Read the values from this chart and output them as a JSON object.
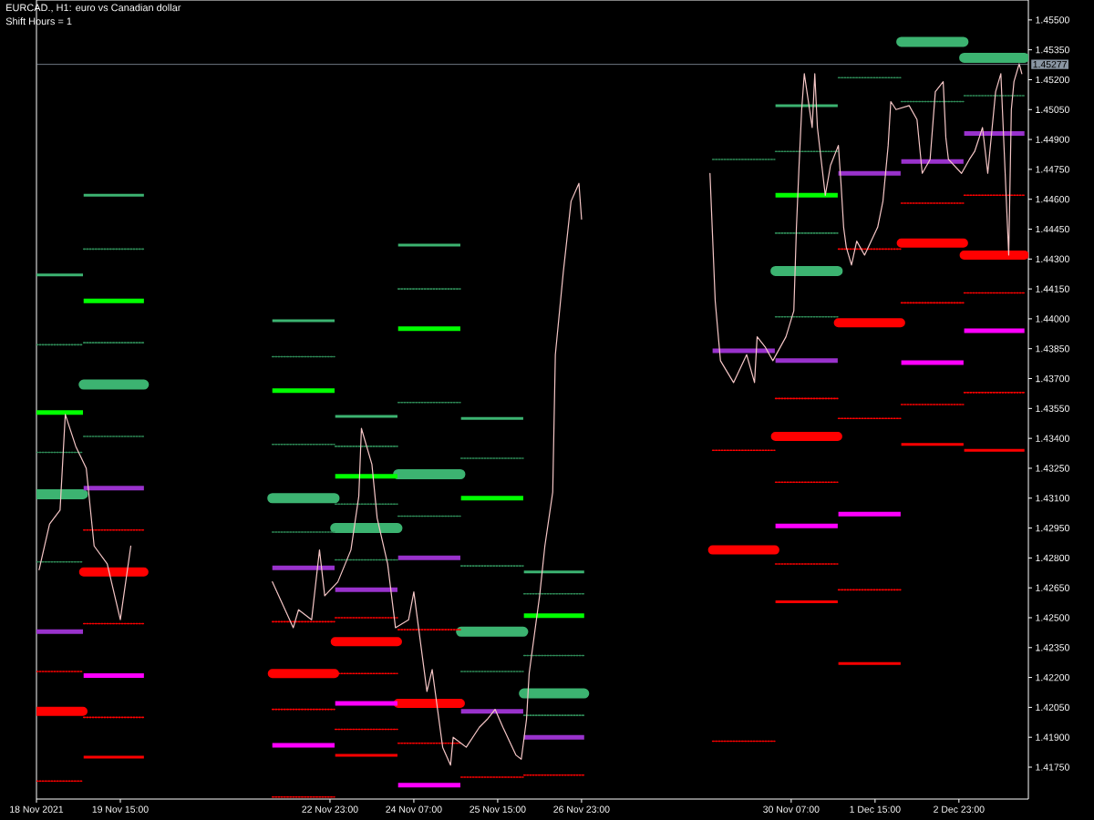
{
  "chart_data": {
    "type": "line",
    "title": "EURCAD., H1: euro vs Canadian dollar",
    "subtitle": "Shift Hours = 1",
    "xlim": [
      "2021-11-18T07:00",
      "2021-12-04T01:30"
    ],
    "ylim": [
      1.4159,
      1.456
    ],
    "xticks": [
      {
        "value": "2021-11-18T07:00",
        "label": "18 Nov 2021"
      },
      {
        "value": "2021-11-19T15:00",
        "label": "19 Nov 15:00"
      },
      {
        "value": "2021-11-22T23:00",
        "label": "22 Nov 23:00"
      },
      {
        "value": "2021-11-24T07:00",
        "label": "24 Nov 07:00"
      },
      {
        "value": "2021-11-25T15:00",
        "label": "25 Nov 15:00"
      },
      {
        "value": "2021-11-26T23:00",
        "label": "26 Nov 23:00"
      },
      {
        "value": "2021-11-30T07:00",
        "label": "30 Nov 07:00"
      },
      {
        "value": "2021-12-01T15:00",
        "label": "1 Dec 15:00"
      },
      {
        "value": "2021-12-02T23:00",
        "label": "2 Dec 23:00"
      }
    ],
    "yticks": [
      {
        "value": 1.4175,
        "label": "1.41750"
      },
      {
        "value": 1.419,
        "label": "1.41900"
      },
      {
        "value": 1.4205,
        "label": "1.42050"
      },
      {
        "value": 1.422,
        "label": "1.42200"
      },
      {
        "value": 1.4235,
        "label": "1.42350"
      },
      {
        "value": 1.425,
        "label": "1.42500"
      },
      {
        "value": 1.4265,
        "label": "1.42650"
      },
      {
        "value": 1.428,
        "label": "1.42800"
      },
      {
        "value": 1.4295,
        "label": "1.42950"
      },
      {
        "value": 1.431,
        "label": "1.43100"
      },
      {
        "value": 1.4325,
        "label": "1.43250"
      },
      {
        "value": 1.434,
        "label": "1.43400"
      },
      {
        "value": 1.4355,
        "label": "1.43550"
      },
      {
        "value": 1.437,
        "label": "1.43700"
      },
      {
        "value": 1.4385,
        "label": "1.43850"
      },
      {
        "value": 1.44,
        "label": "1.44000"
      },
      {
        "value": 1.4415,
        "label": "1.44150"
      },
      {
        "value": 1.443,
        "label": "1.44300"
      },
      {
        "value": 1.4445,
        "label": "1.44450"
      },
      {
        "value": 1.446,
        "label": "1.44600"
      },
      {
        "value": 1.4475,
        "label": "1.44750"
      },
      {
        "value": 1.449,
        "label": "1.44900"
      },
      {
        "value": 1.4505,
        "label": "1.45050"
      },
      {
        "value": 1.452,
        "label": "1.45200"
      },
      {
        "value": 1.4535,
        "label": "1.45350"
      },
      {
        "value": 1.455,
        "label": "1.45500"
      }
    ],
    "ref_lines": [
      {
        "axis": "y",
        "value": 1.45277,
        "label": "1.45277",
        "color": "#8a96a3"
      }
    ],
    "series": [
      {
        "color": "#f5c6c6",
        "x": [
          "2021-11-18T08:00",
          "2021-11-18T12:00",
          "2021-11-18T16:00",
          "2021-11-18T18:00",
          "2021-11-18T22:00",
          "2021-11-19T02:00",
          "2021-11-19T05:00",
          "2021-11-19T10:00",
          "2021-11-19T15:00",
          "2021-11-19T19:00",
          null,
          "2021-11-22T01:00",
          "2021-11-22T09:00",
          "2021-11-22T11:00",
          "2021-11-22T16:00",
          "2021-11-22T19:00",
          "2021-11-22T21:00",
          "2021-11-23T02:00",
          "2021-11-23T07:00",
          "2021-11-23T10:00",
          "2021-11-23T11:00",
          "2021-11-23T15:00",
          "2021-11-23T17:00",
          "2021-11-23T21:00",
          "2021-11-24T00:00",
          "2021-11-24T05:00",
          "2021-11-24T07:00",
          "2021-11-24T12:00",
          "2021-11-24T14:00",
          "2021-11-24T18:00",
          "2021-11-24T21:00",
          "2021-11-24T22:00",
          "2021-11-25T03:00",
          "2021-11-25T08:00",
          "2021-11-25T11:00",
          "2021-11-25T14:00",
          "2021-11-25T17:00",
          "2021-11-25T22:00",
          "2021-11-26T00:00",
          "2021-11-26T02:00",
          "2021-11-26T03:00",
          "2021-11-26T07:00",
          "2021-11-26T09:00",
          "2021-11-26T12:00",
          "2021-11-26T13:00",
          "2021-11-26T16:00",
          "2021-11-26T19:00",
          "2021-11-26T22:00",
          "2021-11-26T23:00",
          null,
          "2021-11-29T00:00",
          "2021-11-29T02:00",
          "2021-11-29T04:00",
          "2021-11-29T09:00",
          "2021-11-29T14:00",
          "2021-11-29T17:00",
          "2021-11-29T18:00",
          "2021-11-29T21:00",
          "2021-11-30T00:00",
          "2021-11-30T05:00",
          "2021-11-30T08:00",
          "2021-11-30T09:00",
          "2021-11-30T10:00",
          "2021-11-30T11:00",
          "2021-11-30T12:00",
          "2021-11-30T15:00",
          "2021-11-30T16:00",
          "2021-11-30T17:00",
          "2021-11-30T20:00",
          "2021-11-30T22:00",
          "2021-12-01T01:00",
          "2021-12-01T02:00",
          "2021-12-01T03:00",
          "2021-12-01T04:00",
          "2021-12-01T06:00",
          "2021-12-01T08:00",
          "2021-12-01T11:00",
          "2021-12-01T16:00",
          "2021-12-01T18:00",
          "2021-12-01T20:00",
          "2021-12-01T21:00",
          "2021-12-01T23:00",
          "2021-12-02T04:00",
          "2021-12-02T07:00",
          "2021-12-02T09:00",
          "2021-12-02T12:00",
          "2021-12-02T14:00",
          "2021-12-02T17:00",
          "2021-12-02T18:00",
          "2021-12-02T19:00",
          "2021-12-03T00:00",
          "2021-12-03T03:00",
          "2021-12-03T05:00",
          "2021-12-03T08:00",
          "2021-12-03T10:00",
          "2021-12-03T13:00",
          "2021-12-03T15:00",
          "2021-12-03T18:00",
          "2021-12-03T19:00",
          "2021-12-03T20:00",
          "2021-12-03T22:00",
          "2021-12-03T23:00"
        ],
        "values": [
          1.4274,
          1.4297,
          1.4304,
          1.4352,
          1.4336,
          1.4325,
          1.4286,
          1.4277,
          1.4249,
          1.4286,
          null,
          1.4268,
          1.4245,
          1.4254,
          1.4249,
          1.4284,
          1.4261,
          1.4268,
          1.4284,
          1.4311,
          1.4345,
          1.4327,
          1.43,
          1.4277,
          1.4245,
          1.4249,
          1.4263,
          1.4213,
          1.4224,
          1.4185,
          1.4176,
          1.419,
          1.4185,
          1.4195,
          1.4199,
          1.4204,
          1.4195,
          1.4181,
          1.4179,
          1.4199,
          1.4222,
          1.4261,
          1.4286,
          1.4313,
          1.4382,
          1.4423,
          1.4459,
          1.4468,
          1.445,
          null,
          1.4473,
          1.4409,
          1.4379,
          1.4368,
          1.4382,
          1.4368,
          1.4391,
          1.4386,
          1.4379,
          1.4391,
          1.4404,
          1.4446,
          1.4477,
          1.4505,
          1.4523,
          1.4496,
          1.4523,
          1.4496,
          1.4462,
          1.4477,
          1.4487,
          1.4468,
          1.4446,
          1.4436,
          1.4427,
          1.4439,
          1.4432,
          1.4446,
          1.4459,
          1.4487,
          1.4509,
          1.4505,
          1.4507,
          1.45,
          1.4473,
          1.448,
          1.4514,
          1.4519,
          1.4491,
          1.448,
          1.4473,
          1.448,
          1.4484,
          1.4496,
          1.4473,
          1.4514,
          1.4523,
          1.4432,
          1.4505,
          1.4519,
          1.4528,
          1.4523
        ]
      },
      {
        "color": "#2e8b57",
        "line_style": "dotted",
        "x": [
          "2021-11-18T07:00",
          "2021-11-19T00:45",
          null,
          "2021-11-19T01:00",
          "2021-11-20T00:00",
          null,
          "2021-11-22T01:00",
          "2021-11-23T00:45",
          null,
          "2021-11-23T01:00",
          "2021-11-24T00:45",
          null,
          "2021-11-24T01:00",
          "2021-11-25T00:45",
          null,
          "2021-11-25T01:00",
          "2021-11-26T00:45",
          null,
          "2021-11-26T01:00",
          "2021-11-27T00:00",
          null,
          "2021-11-29T01:00",
          "2021-11-30T00:45",
          null,
          "2021-11-30T01:00",
          "2021-12-01T00:45",
          null,
          "2021-12-01T01:00",
          "2021-12-02T00:45",
          null,
          "2021-12-02T01:00",
          "2021-12-03T00:45",
          null,
          "2021-12-03T01:00",
          "2021-12-04T00:00"
        ],
        "values": [
          1.4387,
          1.4387,
          null,
          1.4435,
          1.4435,
          null,
          1.4381,
          1.4381,
          null,
          1.4336,
          1.4336,
          null,
          1.4415,
          1.4415,
          null,
          1.433,
          1.433,
          null,
          1.4262,
          1.4262,
          null,
          1.448,
          1.448,
          null,
          1.4484,
          1.4484,
          null,
          1.4521,
          1.4521,
          null,
          1.4509,
          1.4509,
          null,
          1.4512,
          1.4512
        ]
      },
      {
        "color": "#2e8b57",
        "line_style": "dotted",
        "x": [
          "2021-11-18T07:00",
          "2021-11-19T00:45",
          null,
          "2021-11-19T01:00",
          "2021-11-20T00:00",
          null,
          "2021-11-22T01:00",
          "2021-11-23T00:45",
          null,
          "2021-11-23T01:00",
          "2021-11-24T00:45",
          null,
          "2021-11-24T01:00",
          "2021-11-25T00:45",
          null,
          "2021-11-25T01:00",
          "2021-11-26T00:45",
          null,
          "2021-11-26T01:00",
          "2021-11-27T00:00",
          null,
          "2021-11-30T01:00",
          "2021-12-01T00:45"
        ],
        "values": [
          1.4333,
          1.4333,
          null,
          1.4388,
          1.4388,
          null,
          1.4337,
          1.4337,
          null,
          1.4307,
          1.4307,
          null,
          1.4358,
          1.4358,
          null,
          1.4276,
          1.4276,
          null,
          1.4231,
          1.4231,
          null,
          1.4443,
          1.4443
        ]
      },
      {
        "color": "#2e8b57",
        "line_style": "dotted",
        "x": [
          "2021-11-18T07:00",
          "2021-11-19T00:45",
          null,
          "2021-11-19T01:00",
          "2021-11-20T00:00",
          null,
          "2021-11-22T01:00",
          "2021-11-23T00:45",
          null,
          "2021-11-23T01:00",
          "2021-11-24T00:45",
          null,
          "2021-11-24T01:00",
          "2021-11-25T00:45",
          null,
          "2021-11-25T01:00",
          "2021-11-26T00:45",
          null,
          "2021-11-26T01:00",
          "2021-11-27T00:00",
          null,
          "2021-11-30T01:00",
          "2021-12-01T00:45"
        ],
        "values": [
          1.4278,
          1.4278,
          null,
          1.4341,
          1.4341,
          null,
          1.4293,
          1.4293,
          null,
          1.4279,
          1.4279,
          null,
          1.4301,
          1.4301,
          null,
          1.4223,
          1.4223,
          null,
          1.4201,
          1.4201,
          null,
          1.4401,
          1.4401
        ]
      },
      {
        "color": "#ff0000",
        "line_style": "dotted",
        "x": [
          "2021-11-18T07:00",
          "2021-11-19T00:45",
          null,
          "2021-11-19T01:00",
          "2021-11-20T00:00",
          null,
          "2021-11-22T01:00",
          "2021-11-23T00:45",
          null,
          "2021-11-23T01:00",
          "2021-11-24T00:45",
          null,
          "2021-11-24T01:00",
          "2021-11-25T00:45",
          null,
          "2021-11-25T01:00",
          "2021-11-26T00:45",
          null,
          "2021-11-26T01:00",
          "2021-11-27T00:00",
          null,
          "2021-11-29T01:00",
          "2021-11-30T00:45",
          null,
          "2021-11-30T01:00",
          "2021-12-01T00:45",
          null,
          "2021-12-01T01:00",
          "2021-12-02T00:45",
          null,
          "2021-12-02T01:00",
          "2021-12-03T00:45",
          null,
          "2021-12-03T01:00",
          "2021-12-04T00:00"
        ],
        "values": [
          1.4223,
          1.4223,
          null,
          1.4294,
          1.4294,
          null,
          1.4248,
          1.4248,
          null,
          1.425,
          1.425,
          null,
          1.4244,
          1.4244,
          null,
          1.417,
          1.417,
          null,
          1.4171,
          1.4171,
          null,
          1.4334,
          1.4334,
          null,
          1.436,
          1.436,
          null,
          1.4435,
          1.4435,
          null,
          1.4458,
          1.4458,
          null,
          1.4462,
          1.4462
        ]
      },
      {
        "color": "#ff0000",
        "line_style": "dotted",
        "x": [
          "2021-11-18T07:00",
          "2021-11-19T00:45",
          null,
          "2021-11-19T01:00",
          "2021-11-20T00:00",
          null,
          "2021-11-22T01:00",
          "2021-11-23T00:45",
          null,
          "2021-11-23T01:00",
          "2021-11-24T00:45",
          null,
          "2021-11-24T01:00",
          "2021-11-25T00:45",
          null,
          "2021-11-29T01:00",
          "2021-11-30T00:45",
          null,
          "2021-11-30T01:00",
          "2021-12-01T00:45",
          null,
          "2021-12-01T01:00",
          "2021-12-02T00:45",
          null,
          "2021-12-02T01:00",
          "2021-12-03T00:45",
          null,
          "2021-12-03T01:00",
          "2021-12-04T00:00"
        ],
        "values": [
          1.4168,
          1.4168,
          null,
          1.4247,
          1.4247,
          null,
          1.4204,
          1.4204,
          null,
          1.4222,
          1.4222,
          null,
          1.4187,
          1.4187,
          null,
          1.4188,
          1.4188,
          null,
          1.4318,
          1.4318,
          null,
          1.435,
          1.435,
          null,
          1.4408,
          1.4408,
          null,
          1.4413,
          1.4413
        ]
      },
      {
        "color": "#ff0000",
        "line_style": "dotted",
        "x": [
          "2021-11-19T01:00",
          "2021-11-20T00:00",
          null,
          "2021-11-22T01:00",
          "2021-11-23T00:45",
          null,
          "2021-11-23T01:00",
          "2021-11-24T00:45",
          null,
          "2021-11-30T01:00",
          "2021-12-01T00:45",
          null,
          "2021-12-01T01:00",
          "2021-12-02T00:45",
          null,
          "2021-12-02T01:00",
          "2021-12-03T00:45",
          null,
          "2021-12-03T01:00",
          "2021-12-04T00:00"
        ],
        "values": [
          1.42,
          1.42,
          null,
          1.416,
          1.416,
          null,
          1.4194,
          1.4194,
          null,
          1.4277,
          1.4277,
          null,
          1.4264,
          1.4264,
          null,
          1.4357,
          1.4357,
          null,
          1.4363,
          1.4363
        ]
      },
      {
        "color": "#3cb371",
        "x": [
          "2021-11-18T07:00",
          "2021-11-19T00:45",
          null,
          "2021-11-19T01:00",
          "2021-11-20T00:00",
          null,
          "2021-11-22T01:00",
          "2021-11-23T00:45",
          null,
          "2021-11-23T01:00",
          "2021-11-24T00:45",
          null,
          "2021-11-24T01:00",
          "2021-11-25T00:45",
          null,
          "2021-11-25T01:00",
          "2021-11-26T00:45",
          null,
          "2021-11-26T01:00",
          "2021-11-27T00:00",
          null,
          "2021-11-30T01:00",
          "2021-12-01T00:45"
        ],
        "values": [
          1.4422,
          1.4422,
          null,
          1.4462,
          1.4462,
          null,
          1.4399,
          1.4399,
          null,
          1.4351,
          1.4351,
          null,
          1.4437,
          1.4437,
          null,
          1.435,
          1.435,
          null,
          1.4273,
          1.4273,
          null,
          1.4507,
          1.4507
        ]
      },
      {
        "color": "#ff0000",
        "x": [
          "2021-11-19T01:00",
          "2021-11-20T00:00",
          null,
          "2021-11-23T01:00",
          "2021-11-24T00:45",
          null,
          "2021-11-30T01:00",
          "2021-12-01T00:45",
          null,
          "2021-12-01T01:00",
          "2021-12-02T00:45",
          null,
          "2021-12-02T01:00",
          "2021-12-03T00:45",
          null,
          "2021-12-03T01:00",
          "2021-12-04T00:00"
        ],
        "values": [
          1.418,
          1.418,
          null,
          1.4181,
          1.4181,
          null,
          1.4258,
          1.4258,
          null,
          1.4227,
          1.4227,
          null,
          1.4337,
          1.4337,
          null,
          1.4334,
          1.4334
        ]
      },
      {
        "color": "#00ff00",
        "x": [
          "2021-11-18T07:00",
          "2021-11-19T00:45",
          null,
          "2021-11-19T01:00",
          "2021-11-20T00:00",
          null,
          "2021-11-22T01:00",
          "2021-11-23T00:45",
          null,
          "2021-11-23T01:00",
          "2021-11-24T00:45",
          null,
          "2021-11-24T01:00",
          "2021-11-25T00:45",
          null,
          "2021-11-25T01:00",
          "2021-11-26T00:45",
          null,
          "2021-11-26T01:00",
          "2021-11-27T00:00",
          null,
          "2021-11-30T01:00",
          "2021-12-01T00:45"
        ],
        "values": [
          1.4353,
          1.4353,
          null,
          1.4409,
          1.4409,
          null,
          1.4364,
          1.4364,
          null,
          1.4321,
          1.4321,
          null,
          1.4395,
          1.4395,
          null,
          1.431,
          1.431,
          null,
          1.4251,
          1.4251,
          null,
          1.4462,
          1.4462
        ]
      },
      {
        "color": "#9932cc",
        "x": [
          "2021-11-18T07:00",
          "2021-11-19T00:45",
          null,
          "2021-11-19T01:00",
          "2021-11-20T00:00",
          null,
          "2021-11-22T01:00",
          "2021-11-23T00:45",
          null,
          "2021-11-23T01:00",
          "2021-11-24T00:45",
          null,
          "2021-11-24T01:00",
          "2021-11-25T00:45",
          null,
          "2021-11-25T01:00",
          "2021-11-26T00:45",
          null,
          "2021-11-26T01:00",
          "2021-11-27T00:00",
          null,
          "2021-11-29T01:00",
          "2021-11-30T00:45",
          null,
          "2021-11-30T01:00",
          "2021-12-01T00:45",
          null,
          "2021-12-01T01:00",
          "2021-12-02T00:45",
          null,
          "2021-12-02T01:00",
          "2021-12-03T00:45",
          null,
          "2021-12-03T01:00",
          "2021-12-04T00:00"
        ],
        "values": [
          1.4243,
          1.4243,
          null,
          1.4315,
          1.4315,
          null,
          1.4275,
          1.4275,
          null,
          1.4264,
          1.4264,
          null,
          1.428,
          1.428,
          null,
          1.4203,
          1.4203,
          null,
          1.419,
          1.419,
          null,
          1.4384,
          1.4384,
          null,
          1.4379,
          1.4379,
          null,
          1.4473,
          1.4473,
          null,
          1.4479,
          1.4479,
          null,
          1.4493,
          1.4493
        ]
      },
      {
        "color": "#ff00ff",
        "x": [
          "2021-11-19T01:00",
          "2021-11-20T00:00",
          null,
          "2021-11-22T01:00",
          "2021-11-23T00:45",
          null,
          "2021-11-23T01:00",
          "2021-11-24T00:45",
          null,
          "2021-11-24T01:00",
          "2021-11-25T00:45",
          null,
          "2021-11-30T01:00",
          "2021-12-01T00:45",
          null,
          "2021-12-01T01:00",
          "2021-12-02T00:45",
          null,
          "2021-12-02T01:00",
          "2021-12-03T00:45",
          null,
          "2021-12-03T01:00",
          "2021-12-04T00:00"
        ],
        "values": [
          1.4221,
          1.4221,
          null,
          1.4186,
          1.4186,
          null,
          1.4207,
          1.4207,
          null,
          1.4166,
          1.4166,
          null,
          1.4296,
          1.4296,
          null,
          1.4302,
          1.4302,
          null,
          1.4378,
          1.4378,
          null,
          1.4394,
          1.4394
        ]
      },
      {
        "color": "#3cb371",
        "x": [
          "2021-11-18T07:00",
          "2021-11-19T00:45",
          null,
          "2021-11-19T01:00",
          "2021-11-20T00:00",
          null,
          "2021-11-22T01:00",
          "2021-11-23T00:45",
          null,
          "2021-11-23T01:00",
          "2021-11-24T00:45",
          null,
          "2021-11-24T01:00",
          "2021-11-25T00:45",
          null,
          "2021-11-25T01:00",
          "2021-11-26T00:45",
          null,
          "2021-11-26T01:00",
          "2021-11-27T00:00",
          null,
          "2021-11-30T01:00",
          "2021-12-01T00:45",
          null,
          "2021-12-02T01:00",
          "2021-12-03T00:45",
          null,
          "2021-12-03T01:00",
          "2021-12-04T00:00"
        ],
        "values": [
          1.4312,
          1.4312,
          null,
          1.4367,
          1.4367,
          null,
          1.431,
          1.431,
          null,
          1.4295,
          1.4295,
          null,
          1.4322,
          1.4322,
          null,
          1.4243,
          1.4243,
          null,
          1.4212,
          1.4212,
          null,
          1.4424,
          1.4424,
          null,
          1.4539,
          1.4539,
          null,
          1.4531,
          1.4531
        ]
      },
      {
        "color": "#ff0000",
        "x": [
          "2021-11-18T07:00",
          "2021-11-19T00:45",
          null,
          "2021-11-19T01:00",
          "2021-11-20T00:00",
          null,
          "2021-11-22T01:00",
          "2021-11-23T00:45",
          null,
          "2021-11-23T01:00",
          "2021-11-24T00:45",
          null,
          "2021-11-24T01:00",
          "2021-11-25T00:45",
          null,
          "2021-11-29T01:00",
          "2021-11-30T00:45",
          null,
          "2021-11-30T01:00",
          "2021-12-01T00:45",
          null,
          "2021-12-01T01:00",
          "2021-12-02T00:45",
          null,
          "2021-12-02T01:00",
          "2021-12-03T00:45",
          null,
          "2021-12-03T01:00",
          "2021-12-04T00:00"
        ],
        "values": [
          1.4203,
          1.4203,
          null,
          1.4273,
          1.4273,
          null,
          1.4222,
          1.4222,
          null,
          1.4238,
          1.4238,
          null,
          1.4207,
          1.4207,
          null,
          1.4284,
          1.4284,
          null,
          1.4341,
          1.4341,
          null,
          1.4398,
          1.4398,
          null,
          1.4438,
          1.4438,
          null,
          1.4432,
          1.4432
        ]
      }
    ]
  }
}
